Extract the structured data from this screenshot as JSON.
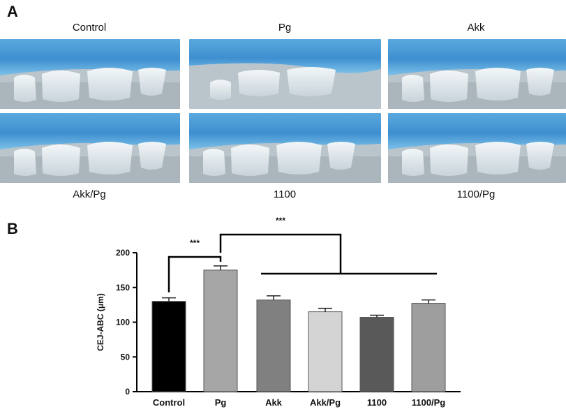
{
  "panel_a": {
    "letter": "A",
    "top_labels": [
      "Control",
      "Pg",
      "Akk"
    ],
    "bottom_labels": [
      "Akk/Pg",
      "1100",
      "1100/Pg"
    ]
  },
  "panel_b": {
    "letter": "B"
  },
  "chart_data": {
    "type": "bar",
    "title": "",
    "ylabel": "CEJ-ABC (μm)",
    "xlabel": "",
    "categories": [
      "Control",
      "Pg",
      "Akk",
      "Akk/Pg",
      "1100",
      "1100/Pg"
    ],
    "values": [
      130,
      175,
      132,
      115,
      107,
      127
    ],
    "errors": [
      5,
      6,
      6,
      5,
      3,
      5
    ],
    "yticks": [
      0,
      50,
      100,
      150,
      200
    ],
    "ylim": [
      0,
      200
    ],
    "bar_colors": [
      "#000000",
      "#a6a6a6",
      "#808080",
      "#d4d4d4",
      "#595959",
      "#9e9e9e"
    ],
    "significance": [
      {
        "label": "***",
        "between": "Control vs Pg"
      },
      {
        "label": "***",
        "between": "Pg vs Akk, Akk/Pg, 1100, 1100/Pg"
      }
    ]
  }
}
